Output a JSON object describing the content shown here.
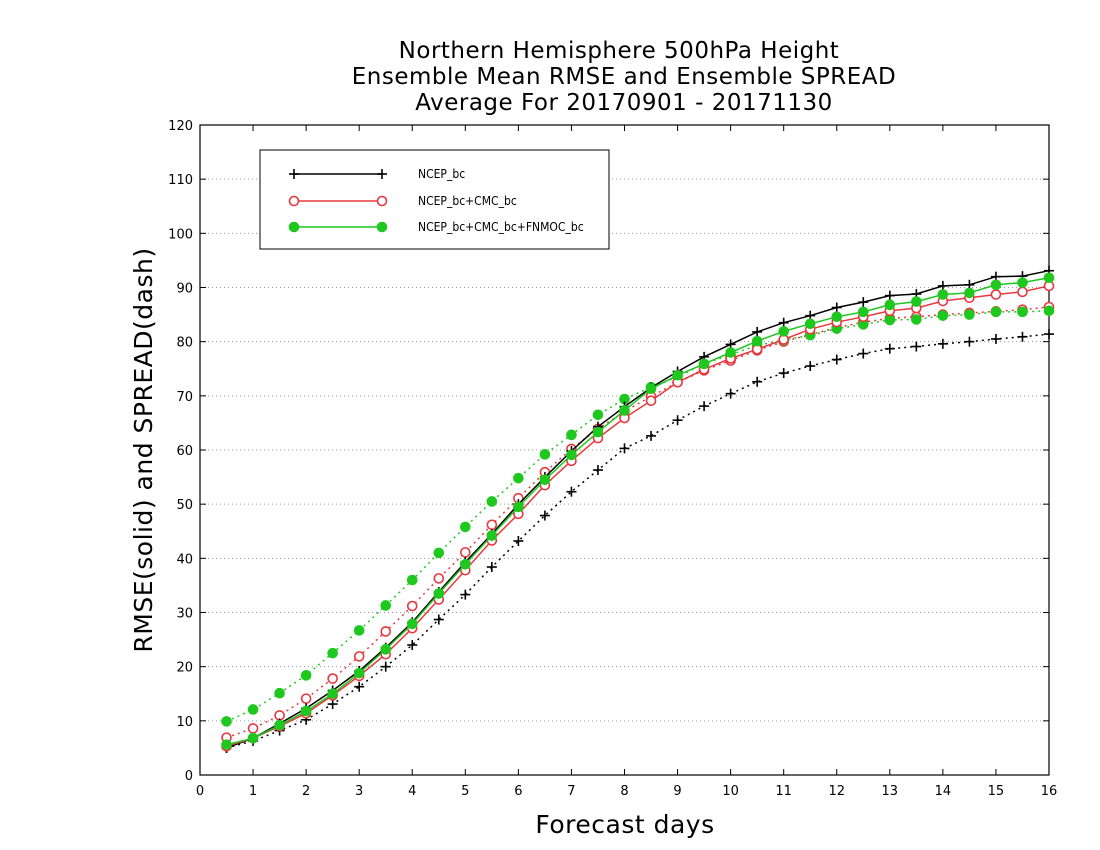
{
  "chart_data": {
    "type": "line",
    "title": [
      "Northern Hemisphere 500hPa Height",
      "Ensemble Mean RMSE and Ensemble SPREAD",
      "Average For 20170901 - 20171130"
    ],
    "xlabel": "Forecast days",
    "ylabel": "RMSE(solid) and SPREAD(dash)",
    "xlim": [
      0,
      16
    ],
    "ylim": [
      0,
      120
    ],
    "xticks": [
      0,
      1,
      2,
      3,
      4,
      5,
      6,
      7,
      8,
      9,
      10,
      11,
      12,
      13,
      14,
      15,
      16
    ],
    "yticks": [
      0,
      10,
      20,
      30,
      40,
      50,
      60,
      70,
      80,
      90,
      100,
      110,
      120
    ],
    "grid": "horizontal dotted",
    "legend_position": "top-left",
    "x": [
      0.5,
      1.0,
      1.5,
      2.0,
      2.5,
      3.0,
      3.5,
      4.0,
      4.5,
      5.0,
      5.5,
      6.0,
      6.5,
      7.0,
      7.5,
      8.0,
      8.5,
      9.0,
      9.5,
      10.0,
      10.5,
      11.0,
      11.5,
      12.0,
      12.5,
      13.0,
      13.5,
      14.0,
      14.5,
      15.0,
      15.5,
      16.0
    ],
    "series": [
      {
        "name": "NCEP_bc",
        "metric": "RMSE",
        "line": "solid",
        "marker": "plus",
        "color": "#000000",
        "values": [
          5.0,
          6.8,
          9.5,
          12.3,
          15.6,
          19.2,
          23.5,
          28.2,
          33.8,
          39.3,
          44.5,
          50.0,
          55.0,
          59.8,
          64.3,
          68.0,
          71.5,
          74.5,
          77.2,
          79.5,
          81.8,
          83.5,
          84.8,
          86.3,
          87.3,
          88.5,
          88.8,
          90.3,
          90.5,
          92.0,
          92.1,
          93.1
        ]
      },
      {
        "name": "NCEP_bc",
        "metric": "SPREAD",
        "line": "dotted",
        "marker": "plus",
        "color": "#000000",
        "values": [
          5.0,
          6.3,
          8.2,
          10.2,
          13.1,
          16.3,
          20.0,
          24.0,
          28.7,
          33.3,
          38.4,
          43.2,
          47.9,
          52.3,
          56.3,
          60.3,
          62.6,
          65.5,
          68.1,
          70.4,
          72.6,
          74.2,
          75.5,
          76.7,
          77.8,
          78.7,
          79.1,
          79.6,
          80.0,
          80.5,
          80.9,
          81.4
        ]
      },
      {
        "name": "NCEP_bc+CMC_bc",
        "metric": "RMSE",
        "line": "solid",
        "marker": "open-circle",
        "color": "#e8383f",
        "values": [
          5.3,
          6.8,
          9.0,
          11.4,
          14.7,
          18.3,
          22.3,
          27.1,
          32.4,
          37.8,
          43.3,
          48.2,
          53.5,
          58.0,
          62.2,
          65.9,
          69.1,
          72.5,
          74.9,
          76.9,
          78.6,
          80.4,
          82.3,
          83.6,
          84.6,
          85.7,
          86.2,
          87.5,
          88.1,
          88.7,
          89.2,
          90.3
        ]
      },
      {
        "name": "NCEP_bc+CMC_bc",
        "metric": "SPREAD",
        "line": "dotted",
        "marker": "open-circle",
        "color": "#e8383f",
        "values": [
          6.9,
          8.6,
          11.0,
          14.1,
          17.8,
          21.9,
          26.5,
          31.2,
          36.3,
          41.1,
          46.2,
          51.1,
          55.9,
          60.2,
          63.9,
          67.1,
          69.9,
          72.5,
          74.7,
          76.5,
          78.4,
          80.0,
          81.3,
          82.6,
          83.6,
          84.3,
          84.6,
          85.0,
          85.3,
          85.6,
          85.9,
          86.4
        ]
      },
      {
        "name": "NCEP_bc+CMC_bc+FNMOC_bc",
        "metric": "RMSE",
        "line": "solid",
        "marker": "filled-circle",
        "color": "#1ec81e",
        "values": [
          5.6,
          6.8,
          9.2,
          11.8,
          15.0,
          18.8,
          23.2,
          27.9,
          33.5,
          38.9,
          44.2,
          49.5,
          54.5,
          59.1,
          63.3,
          67.3,
          71.3,
          73.8,
          75.9,
          78.0,
          80.1,
          81.9,
          83.3,
          84.6,
          85.5,
          86.8,
          87.4,
          88.7,
          89.0,
          90.5,
          90.9,
          91.8
        ]
      },
      {
        "name": "NCEP_bc+CMC_bc+FNMOC_bc",
        "metric": "SPREAD",
        "line": "dotted",
        "marker": "filled-circle",
        "color": "#1ec81e",
        "values": [
          9.9,
          12.1,
          15.1,
          18.4,
          22.5,
          26.7,
          31.3,
          36.0,
          41.0,
          45.8,
          50.5,
          54.8,
          59.2,
          62.8,
          66.5,
          69.4,
          71.6,
          73.5,
          75.9,
          77.6,
          79.3,
          80.3,
          81.2,
          82.4,
          83.2,
          84.0,
          84.1,
          84.8,
          85.0,
          85.5,
          85.5,
          85.7
        ]
      }
    ],
    "legend": [
      "NCEP_bc",
      "NCEP_bc+CMC_bc",
      "NCEP_bc+CMC_bc+FNMOC_bc"
    ]
  }
}
